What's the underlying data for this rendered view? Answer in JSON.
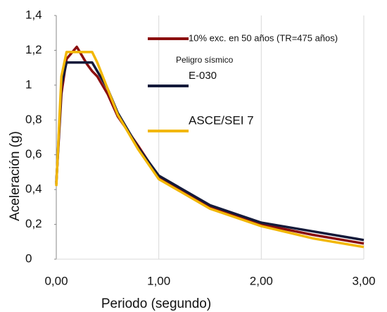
{
  "chart_data": {
    "type": "line",
    "xlabel": "Periodo (segundo)",
    "ylabel": "Aceleración (g)",
    "annotation": "Peligro sísmico",
    "x": [
      0,
      0.05,
      0.1,
      0.2,
      0.3,
      0.35,
      0.4,
      0.5,
      0.6,
      0.8,
      1.0,
      1.5,
      2.0,
      2.5,
      3.0
    ],
    "series": [
      {
        "name": "10% exc. en 50 años (TR=475 años)",
        "color": "#8b0e0e",
        "values": [
          0.44,
          0.95,
          1.15,
          1.22,
          1.12,
          1.08,
          1.05,
          0.95,
          0.82,
          0.65,
          0.47,
          0.3,
          0.2,
          0.14,
          0.09
        ]
      },
      {
        "name": "E-030",
        "color": "#141a3a",
        "values": [
          0.43,
          1.0,
          1.13,
          1.13,
          1.13,
          1.13,
          1.08,
          0.98,
          0.84,
          0.64,
          0.48,
          0.31,
          0.21,
          0.16,
          0.11
        ]
      },
      {
        "name": "ASCE/SEI 7",
        "color": "#f2b705",
        "values": [
          0.42,
          1.05,
          1.19,
          1.19,
          1.19,
          1.19,
          1.13,
          0.98,
          0.83,
          0.63,
          0.46,
          0.29,
          0.19,
          0.12,
          0.07
        ]
      }
    ],
    "xlim": [
      0,
      3.0
    ],
    "xticks": [
      {
        "value": 0,
        "label": "0,00"
      },
      {
        "value": 1,
        "label": "1,00"
      },
      {
        "value": 2,
        "label": "2,00"
      },
      {
        "value": 3,
        "label": "3,00"
      }
    ],
    "ylim": [
      0,
      1.4
    ],
    "yticks": [
      {
        "value": 1.4,
        "label": "1,4"
      },
      {
        "value": 1.2,
        "label": "1,2"
      },
      1,
      {
        "value": 0.4,
        "label": "0,4"
      },
      {
        "value": 0.8,
        "label": "0,8"
      },
      {
        "value": 0.6,
        "label": "0,6"
      },
      {
        "value": 0.2,
        "label": "0,2"
      },
      0
    ],
    "grid": true
  }
}
